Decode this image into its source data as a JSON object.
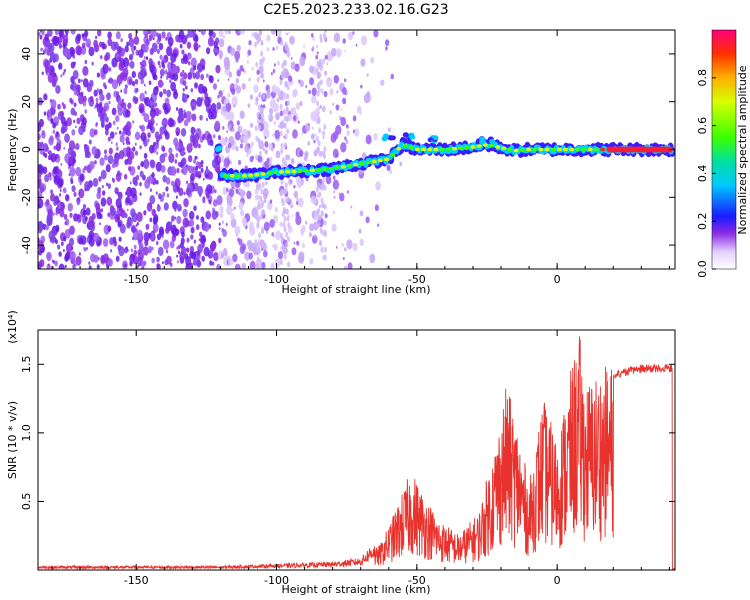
{
  "title": "C2E5.2023.233.02.16.G23",
  "chart_data": [
    {
      "type": "heatmap",
      "xlabel": "Height of straight line (km)",
      "ylabel": "Frequency (Hz)",
      "xlim": [
        -185,
        42
      ],
      "ylim": [
        -50,
        50
      ],
      "x_ticks": [
        -150,
        -100,
        -50,
        0
      ],
      "y_ticks": [
        -40,
        -20,
        0,
        20,
        40
      ],
      "grid": false,
      "colorbar": {
        "label": "Normalized spectral amplitude",
        "range": [
          0,
          1
        ],
        "ticks": [
          "0.0",
          "0.2",
          "0.4",
          "0.6",
          "0.8"
        ]
      },
      "ridge": {
        "description_points": [
          [
            -120,
            -11
          ],
          [
            -110,
            -11
          ],
          [
            -100,
            -9.5
          ],
          [
            -90,
            -9
          ],
          [
            -80,
            -8
          ],
          [
            -70,
            -6
          ],
          [
            -60,
            -4
          ],
          [
            -55,
            2
          ],
          [
            -50,
            0
          ],
          [
            -45,
            0
          ],
          [
            -40,
            0
          ],
          [
            -30,
            1
          ],
          [
            -25,
            2
          ],
          [
            -15,
            -0.5
          ],
          [
            -10,
            0
          ],
          [
            0,
            0
          ],
          [
            10,
            0
          ],
          [
            20,
            0
          ],
          [
            41,
            0
          ]
        ],
        "upper_branch": [
          [
            -60,
            5
          ],
          [
            -52,
            6
          ],
          [
            -45,
            4
          ],
          [
            -25,
            4
          ]
        ],
        "noise_region": [
          -185,
          -60
        ]
      }
    },
    {
      "type": "line",
      "xlabel": "Height of straight line (km)",
      "ylabel": "SNR (10 * v/v)",
      "y_multiplier": "(x10⁴)",
      "xlim": [
        -185,
        42
      ],
      "ylim": [
        0,
        1.75
      ],
      "x_ticks": [
        -150,
        -100,
        -50,
        0
      ],
      "y_ticks": [
        0.5,
        1.0,
        1.5
      ],
      "grid": false,
      "series": [
        {
          "color": "#e8322d",
          "envelope_keypoints": [
            [
              -185,
              0.02
            ],
            [
              -120,
              0.02
            ],
            [
              -100,
              0.03
            ],
            [
              -80,
              0.04
            ],
            [
              -70,
              0.06
            ],
            [
              -63,
              0.18
            ],
            [
              -58,
              0.4
            ],
            [
              -52,
              0.7
            ],
            [
              -48,
              0.55
            ],
            [
              -42,
              0.35
            ],
            [
              -35,
              0.25
            ],
            [
              -28,
              0.4
            ],
            [
              -22,
              0.9
            ],
            [
              -18,
              1.3
            ],
            [
              -14,
              1.0
            ],
            [
              -10,
              0.6
            ],
            [
              -5,
              1.2
            ],
            [
              0,
              0.9
            ],
            [
              5,
              1.4
            ],
            [
              8,
              1.65
            ],
            [
              10,
              1.3
            ],
            [
              15,
              1.4
            ],
            [
              20,
              1.45
            ],
            [
              30,
              1.5
            ],
            [
              41,
              1.5
            ]
          ]
        }
      ]
    }
  ]
}
